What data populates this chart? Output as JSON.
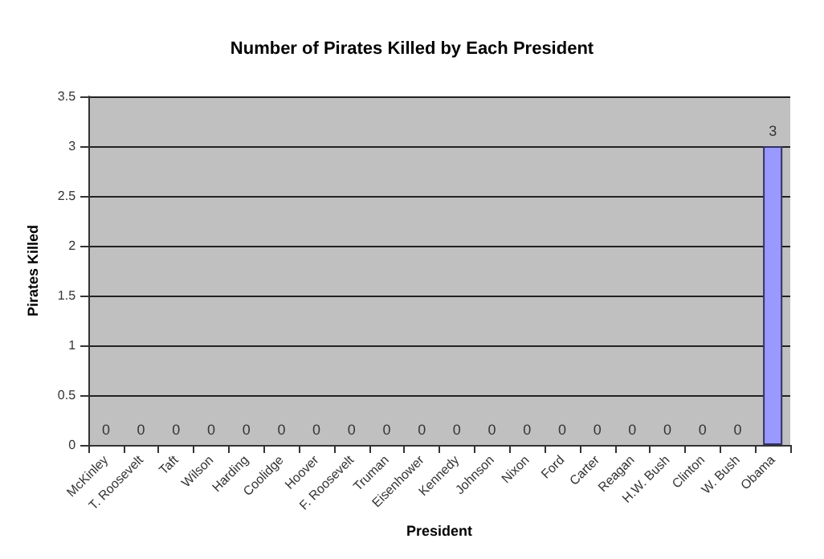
{
  "chart_data": {
    "type": "bar",
    "title": "Number of Pirates Killed by Each President",
    "xlabel": "President",
    "ylabel": "Pirates Killed",
    "categories": [
      "McKinley",
      "T. Roosevelt",
      "Taft",
      "Wilson",
      "Harding",
      "Coolidge",
      "Hoover",
      "F. Roosevelt",
      "Truman",
      "Eisenhower",
      "Kennedy",
      "Johnson",
      "Nixon",
      "Ford",
      "Carter",
      "Reagan",
      "H.W. Bush",
      "Clinton",
      "W. Bush",
      "Obama"
    ],
    "values": [
      0,
      0,
      0,
      0,
      0,
      0,
      0,
      0,
      0,
      0,
      0,
      0,
      0,
      0,
      0,
      0,
      0,
      0,
      0,
      3
    ],
    "color": "#9999ff",
    "ylim": [
      0,
      3.5
    ],
    "yticks": [
      0,
      0.5,
      1,
      1.5,
      2,
      2.5,
      3,
      3.5
    ],
    "grid": "y",
    "data_labels": true
  }
}
